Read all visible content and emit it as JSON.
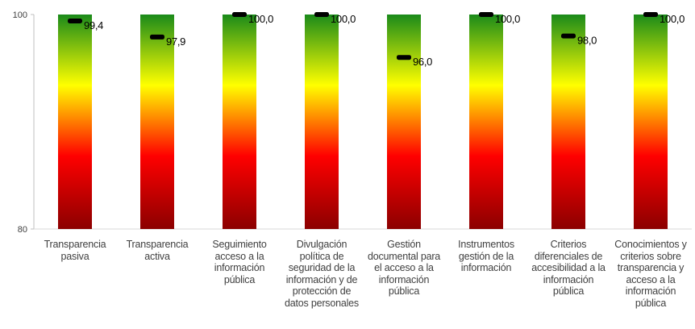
{
  "chart_data": {
    "type": "bar",
    "title": "",
    "xlabel": "",
    "ylabel": "",
    "ylim": [
      80,
      100
    ],
    "yticks": [
      "100",
      "80"
    ],
    "grid": false,
    "legend": "none",
    "bar_gradient_top_to_bottom": [
      "#1a8a1a",
      "#ffff00",
      "#ff0000",
      "#8b0000"
    ],
    "marker_color": "#000000",
    "categories": [
      [
        "Transparencia",
        "pasiva"
      ],
      [
        "Transparencia",
        "activa"
      ],
      [
        "Seguimiento",
        "acceso a la",
        "información",
        "pública"
      ],
      [
        "Divulgación",
        "política de",
        "seguridad de la",
        "información y de",
        "protección de",
        "datos personales"
      ],
      [
        "Gestión",
        "documental para",
        "el acceso a la",
        "información",
        "pública"
      ],
      [
        "Instrumentos",
        "gestión de la",
        "información"
      ],
      [
        "Criterios",
        "diferenciales de",
        "accesibilidad a la",
        "información",
        "pública"
      ],
      [
        "Conocimientos y",
        "criterios sobre",
        "transparencia y",
        "acceso a la",
        "información",
        "pública"
      ]
    ],
    "values": [
      99.4,
      97.9,
      100.0,
      100.0,
      96.0,
      100.0,
      98.0,
      100.0
    ],
    "value_labels": [
      "99,4",
      "97,9",
      "100,0",
      "100,0",
      "96,0",
      "100,0",
      "98,0",
      "100,0"
    ]
  }
}
